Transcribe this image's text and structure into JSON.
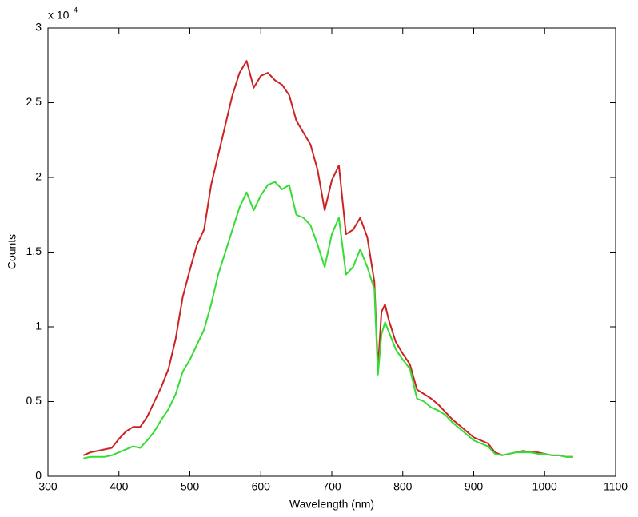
{
  "chart_data": {
    "type": "line",
    "xlabel": "Wavelength (nm)",
    "ylabel": "Counts",
    "y_multiplier": {
      "base": "x 10",
      "exponent": "4"
    },
    "x": [
      350,
      360,
      370,
      380,
      390,
      400,
      410,
      420,
      430,
      440,
      450,
      460,
      470,
      480,
      490,
      500,
      510,
      520,
      530,
      540,
      550,
      560,
      570,
      580,
      590,
      600,
      610,
      620,
      630,
      640,
      650,
      660,
      670,
      680,
      690,
      700,
      710,
      720,
      730,
      740,
      750,
      760,
      765,
      770,
      775,
      780,
      790,
      800,
      810,
      820,
      830,
      840,
      850,
      860,
      870,
      880,
      890,
      900,
      910,
      920,
      930,
      940,
      950,
      960,
      970,
      980,
      990,
      1000,
      1010,
      1020,
      1030,
      1040
    ],
    "series": [
      {
        "color": "#cc2222",
        "values": [
          0.14,
          0.16,
          0.17,
          0.18,
          0.19,
          0.25,
          0.3,
          0.33,
          0.33,
          0.4,
          0.5,
          0.6,
          0.72,
          0.92,
          1.2,
          1.38,
          1.55,
          1.65,
          1.95,
          2.15,
          2.35,
          2.55,
          2.7,
          2.78,
          2.6,
          2.68,
          2.7,
          2.65,
          2.62,
          2.55,
          2.38,
          2.3,
          2.22,
          2.05,
          1.78,
          1.98,
          2.08,
          1.62,
          1.65,
          1.73,
          1.6,
          1.3,
          0.72,
          1.1,
          1.15,
          1.05,
          0.9,
          0.82,
          0.75,
          0.58,
          0.55,
          0.52,
          0.48,
          0.43,
          0.38,
          0.34,
          0.3,
          0.26,
          0.24,
          0.22,
          0.16,
          0.14,
          0.15,
          0.16,
          0.17,
          0.16,
          0.16,
          0.15,
          0.14,
          0.14,
          0.13,
          0.13
        ]
      },
      {
        "color": "#33dd33",
        "values": [
          0.12,
          0.13,
          0.13,
          0.13,
          0.14,
          0.16,
          0.18,
          0.2,
          0.19,
          0.24,
          0.3,
          0.38,
          0.45,
          0.55,
          0.7,
          0.78,
          0.88,
          0.98,
          1.15,
          1.35,
          1.5,
          1.65,
          1.8,
          1.9,
          1.78,
          1.88,
          1.95,
          1.97,
          1.92,
          1.95,
          1.75,
          1.73,
          1.68,
          1.55,
          1.4,
          1.62,
          1.73,
          1.35,
          1.4,
          1.52,
          1.4,
          1.25,
          0.68,
          0.95,
          1.03,
          0.97,
          0.85,
          0.78,
          0.72,
          0.52,
          0.5,
          0.46,
          0.44,
          0.41,
          0.36,
          0.32,
          0.28,
          0.24,
          0.22,
          0.2,
          0.15,
          0.14,
          0.15,
          0.16,
          0.16,
          0.16,
          0.15,
          0.15,
          0.14,
          0.14,
          0.13,
          0.13
        ]
      }
    ],
    "xlim": [
      300,
      1100
    ],
    "xticks": [
      300,
      400,
      500,
      600,
      700,
      800,
      900,
      1000,
      1100
    ],
    "ylim": [
      0,
      3
    ],
    "yticks": [
      0,
      0.5,
      1,
      1.5,
      2,
      2.5,
      3
    ],
    "grid": false
  }
}
